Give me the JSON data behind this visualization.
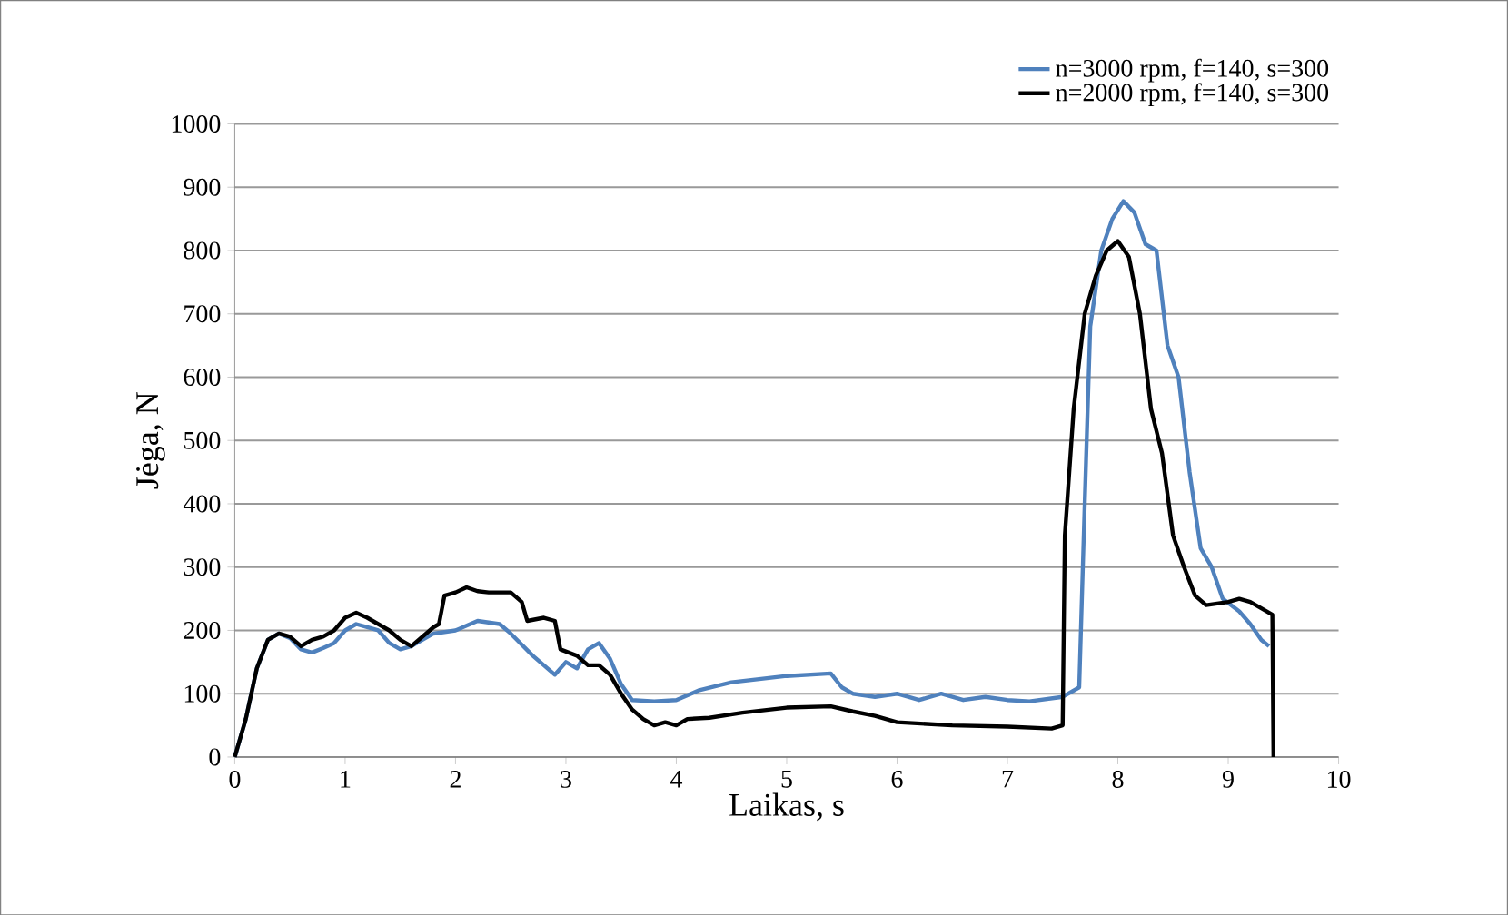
{
  "chart_data": {
    "type": "line",
    "xlabel": "Laikas, s",
    "ylabel": "Jėga, N",
    "xlim": [
      0,
      10
    ],
    "ylim": [
      0,
      1000
    ],
    "xticks": [
      0,
      1,
      2,
      3,
      4,
      5,
      6,
      7,
      8,
      9,
      10
    ],
    "yticks": [
      0,
      100,
      200,
      300,
      400,
      500,
      600,
      700,
      800,
      900,
      1000
    ],
    "grid": "y",
    "legend": "top right",
    "marker": "none",
    "line_style": "solid",
    "series": [
      {
        "name": "n=3000 rpm, f=140, s=300",
        "color": "#4f81bd",
        "x": [
          0,
          0.1,
          0.2,
          0.3,
          0.4,
          0.5,
          0.6,
          0.7,
          0.8,
          0.9,
          1.0,
          1.1,
          1.2,
          1.3,
          1.4,
          1.5,
          1.6,
          1.8,
          2.0,
          2.2,
          2.4,
          2.5,
          2.7,
          2.9,
          3.0,
          3.1,
          3.2,
          3.3,
          3.4,
          3.5,
          3.6,
          3.8,
          4.0,
          4.2,
          4.5,
          5.0,
          5.4,
          5.5,
          5.6,
          5.8,
          6.0,
          6.2,
          6.4,
          6.6,
          6.8,
          7.0,
          7.2,
          7.5,
          7.65,
          7.7,
          7.75,
          7.85,
          7.95,
          8.05,
          8.15,
          8.25,
          8.35,
          8.45,
          8.55,
          8.65,
          8.75,
          8.85,
          8.95,
          9.1,
          9.2,
          9.3,
          9.37
        ],
        "values": [
          0,
          60,
          140,
          185,
          195,
          188,
          170,
          165,
          172,
          180,
          200,
          210,
          205,
          200,
          180,
          170,
          175,
          195,
          200,
          215,
          210,
          195,
          160,
          130,
          150,
          140,
          170,
          180,
          155,
          115,
          90,
          88,
          90,
          105,
          118,
          128,
          132,
          110,
          100,
          95,
          100,
          90,
          100,
          90,
          95,
          90,
          88,
          95,
          110,
          400,
          680,
          800,
          850,
          878,
          860,
          810,
          800,
          650,
          600,
          450,
          330,
          300,
          250,
          230,
          210,
          185,
          175
        ]
      },
      {
        "name": "n=2000 rpm, f=140, s=300",
        "color": "#000000",
        "x": [
          0,
          0.1,
          0.2,
          0.3,
          0.4,
          0.5,
          0.6,
          0.7,
          0.8,
          0.9,
          1.0,
          1.1,
          1.2,
          1.3,
          1.4,
          1.5,
          1.6,
          1.7,
          1.8,
          1.85,
          1.9,
          2.0,
          2.1,
          2.2,
          2.3,
          2.5,
          2.6,
          2.65,
          2.8,
          2.9,
          2.95,
          3.1,
          3.2,
          3.3,
          3.4,
          3.5,
          3.6,
          3.7,
          3.8,
          3.9,
          4.0,
          4.1,
          4.3,
          4.6,
          5.0,
          5.4,
          5.6,
          5.8,
          6.0,
          6.5,
          7.0,
          7.4,
          7.5,
          7.52,
          7.6,
          7.7,
          7.8,
          7.9,
          8.0,
          8.1,
          8.2,
          8.3,
          8.4,
          8.5,
          8.6,
          8.7,
          8.8,
          9.0,
          9.1,
          9.2,
          9.3,
          9.4,
          9.41
        ],
        "values": [
          0,
          60,
          140,
          185,
          195,
          190,
          175,
          185,
          190,
          200,
          220,
          228,
          220,
          210,
          200,
          185,
          175,
          190,
          205,
          210,
          255,
          260,
          268,
          262,
          260,
          260,
          245,
          215,
          220,
          215,
          170,
          160,
          145,
          145,
          130,
          100,
          75,
          60,
          50,
          55,
          50,
          60,
          62,
          70,
          78,
          80,
          72,
          65,
          55,
          50,
          48,
          45,
          50,
          350,
          550,
          700,
          760,
          800,
          815,
          790,
          700,
          550,
          480,
          350,
          300,
          255,
          240,
          245,
          250,
          245,
          235,
          225,
          0
        ]
      }
    ]
  }
}
